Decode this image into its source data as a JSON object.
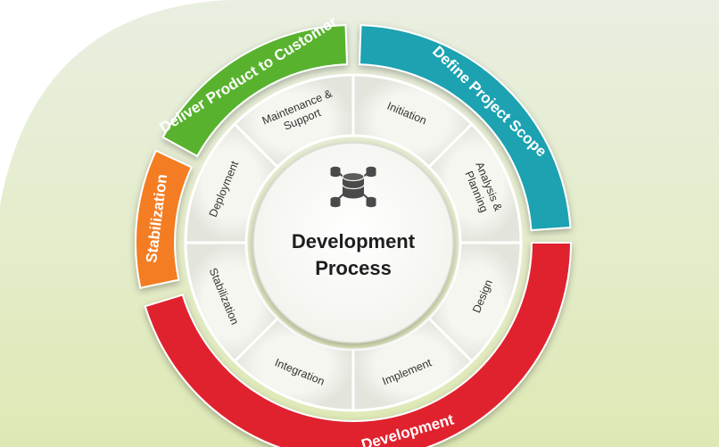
{
  "diagram": {
    "center_title": [
      "Development",
      "Process"
    ],
    "center_icon": "database-network-icon",
    "phases": [
      {
        "id": "define",
        "label": "Define Project Scope",
        "color": "#1aa2b1"
      },
      {
        "id": "development",
        "label": "Development",
        "color": "#e0232f"
      },
      {
        "id": "stabilization",
        "label": "Stabilization",
        "color": "#f47c20"
      },
      {
        "id": "deliver",
        "label": "Deliver Product to Customer",
        "color": "#58b22e"
      }
    ],
    "steps": [
      {
        "id": "initiation",
        "lines": [
          "Initiation"
        ]
      },
      {
        "id": "analysis-planning",
        "lines": [
          "Analysis &",
          "Planning"
        ]
      },
      {
        "id": "design",
        "lines": [
          "Design"
        ]
      },
      {
        "id": "implement",
        "lines": [
          "Implement"
        ]
      },
      {
        "id": "integration",
        "lines": [
          "Integration"
        ]
      },
      {
        "id": "stabilization",
        "lines": [
          "Stabilization"
        ]
      },
      {
        "id": "deployment",
        "lines": [
          "Deployment"
        ]
      },
      {
        "id": "maintenance-support",
        "lines": [
          "Maintenance &",
          "Support"
        ]
      }
    ]
  }
}
